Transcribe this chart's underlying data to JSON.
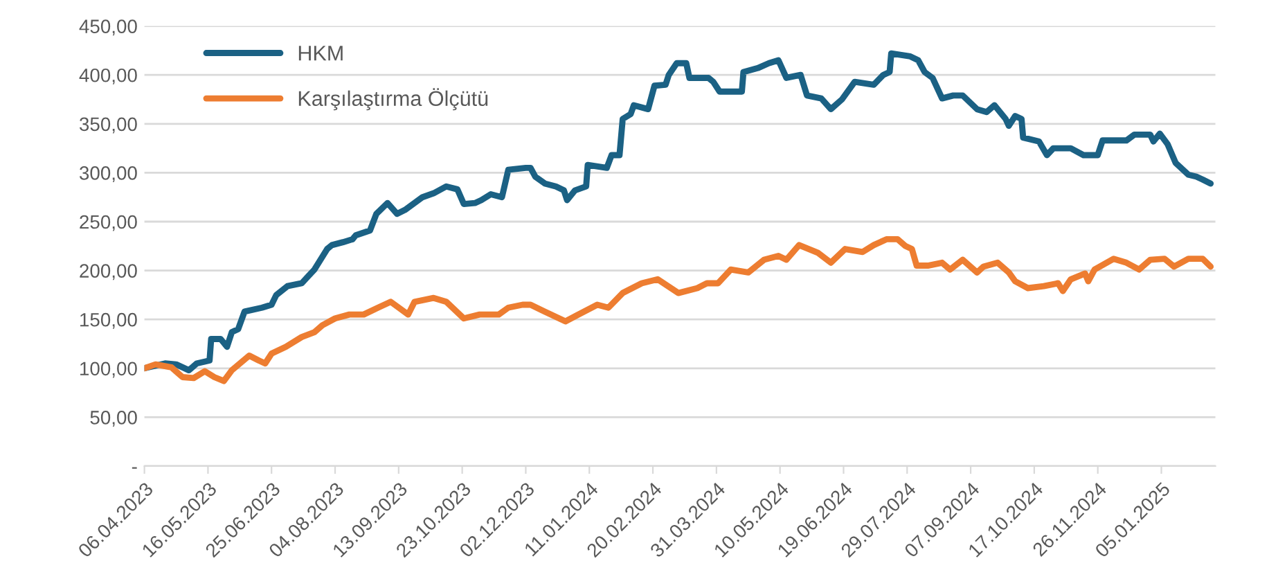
{
  "chart_data": {
    "type": "line",
    "xlim": [
      "2023-04-06",
      "2025-02-08"
    ],
    "xticks": [
      {
        "value": "2023-04-06",
        "label": "06.04.2023"
      },
      {
        "value": "2023-05-16",
        "label": "16.05.2023"
      },
      {
        "value": "2023-06-25",
        "label": "25.06.2023"
      },
      {
        "value": "2023-08-04",
        "label": "04.08.2023"
      },
      {
        "value": "2023-09-13",
        "label": "13.09.2023"
      },
      {
        "value": "2023-10-23",
        "label": "23.10.2023"
      },
      {
        "value": "2023-12-02",
        "label": "02.12.2023"
      },
      {
        "value": "2024-01-11",
        "label": "11.01.2024"
      },
      {
        "value": "2024-02-20",
        "label": "20.02.2024"
      },
      {
        "value": "2024-03-31",
        "label": "31.03.2024"
      },
      {
        "value": "2024-05-10",
        "label": "10.05.2024"
      },
      {
        "value": "2024-06-19",
        "label": "19.06.2024"
      },
      {
        "value": "2024-07-29",
        "label": "29.07.2024"
      },
      {
        "value": "2024-09-07",
        "label": "07.09.2024"
      },
      {
        "value": "2024-10-17",
        "label": "17.10.2024"
      },
      {
        "value": "2024-11-26",
        "label": "26.11.2024"
      },
      {
        "value": "2025-01-05",
        "label": "05.01.2025"
      }
    ],
    "ylim": [
      0,
      450
    ],
    "yticks": [
      {
        "value": 0,
        "label": "-"
      },
      {
        "value": 50,
        "label": "50,00"
      },
      {
        "value": 100,
        "label": "100,00"
      },
      {
        "value": 150,
        "label": "150,00"
      },
      {
        "value": 200,
        "label": "200,00"
      },
      {
        "value": 250,
        "label": "250,00"
      },
      {
        "value": 300,
        "label": "300,00"
      },
      {
        "value": 350,
        "label": "350,00"
      },
      {
        "value": 400,
        "label": "400,00"
      },
      {
        "value": 450,
        "label": "450,00"
      }
    ],
    "grid": "y",
    "legend": "top left",
    "marker": "none",
    "line_style": "solid",
    "series": [
      {
        "name": "HKM",
        "color": "#1b6184",
        "x": [
          "2023-04-06",
          "2023-04-19",
          "2023-04-26",
          "2023-05-04",
          "2023-05-09",
          "2023-05-17",
          "2023-05-18",
          "2023-05-24",
          "2023-05-28",
          "2023-05-31",
          "2023-06-04",
          "2023-06-08",
          "2023-06-19",
          "2023-06-25",
          "2023-06-28",
          "2023-07-05",
          "2023-07-14",
          "2023-07-18",
          "2023-07-22",
          "2023-07-30",
          "2023-08-02",
          "2023-08-09",
          "2023-08-15",
          "2023-08-17",
          "2023-08-26",
          "2023-08-30",
          "2023-09-06",
          "2023-09-12",
          "2023-09-17",
          "2023-09-28",
          "2023-10-05",
          "2023-10-13",
          "2023-10-20",
          "2023-10-24",
          "2023-10-31",
          "2023-11-04",
          "2023-11-10",
          "2023-11-17",
          "2023-11-21",
          "2023-12-02",
          "2023-12-05",
          "2023-12-08",
          "2023-12-14",
          "2023-12-21",
          "2023-12-26",
          "2023-12-28",
          "2024-01-02",
          "2024-01-09",
          "2024-01-10",
          "2024-01-22",
          "2024-01-25",
          "2024-01-30",
          "2024-02-01",
          "2024-02-06",
          "2024-02-08",
          "2024-02-17",
          "2024-02-21",
          "2024-02-28",
          "2024-03-01",
          "2024-03-06",
          "2024-03-12",
          "2024-03-14",
          "2024-03-26",
          "2024-03-29",
          "2024-04-02",
          "2024-04-16",
          "2024-04-17",
          "2024-04-26",
          "2024-05-03",
          "2024-05-09",
          "2024-05-14",
          "2024-05-23",
          "2024-05-27",
          "2024-06-05",
          "2024-06-11",
          "2024-06-18",
          "2024-06-26",
          "2024-07-08",
          "2024-07-14",
          "2024-07-18",
          "2024-07-19",
          "2024-07-31",
          "2024-08-05",
          "2024-08-09",
          "2024-08-14",
          "2024-08-20",
          "2024-08-27",
          "2024-09-02",
          "2024-09-11",
          "2024-09-17",
          "2024-09-22",
          "2024-09-29",
          "2024-10-01",
          "2024-10-05",
          "2024-10-09",
          "2024-10-10",
          "2024-10-20",
          "2024-10-25",
          "2024-10-29",
          "2024-11-09",
          "2024-11-17",
          "2024-11-26",
          "2024-11-29",
          "2024-12-14",
          "2024-12-19",
          "2024-12-29",
          "2024-12-31",
          "2025-01-04",
          "2025-01-09",
          "2025-01-14",
          "2025-01-22",
          "2025-01-27",
          "2025-01-31",
          "2025-02-05"
        ],
        "values": [
          100,
          105,
          104,
          98,
          105,
          108,
          130,
          130,
          122,
          137,
          140,
          158,
          162,
          165,
          175,
          184,
          187,
          194,
          201,
          222,
          226,
          229,
          232,
          236,
          241,
          258,
          269,
          258,
          262,
          275,
          279,
          286,
          283,
          268,
          269,
          272,
          278,
          275,
          303,
          305,
          305,
          296,
          289,
          286,
          282,
          272,
          282,
          286,
          308,
          305,
          318,
          318,
          355,
          360,
          369,
          365,
          389,
          390,
          400,
          412,
          412,
          397,
          397,
          393,
          383,
          383,
          403,
          407,
          412,
          415,
          397,
          400,
          379,
          376,
          365,
          375,
          393,
          390,
          400,
          403,
          422,
          419,
          415,
          403,
          397,
          376,
          379,
          379,
          365,
          362,
          369,
          355,
          348,
          358,
          355,
          336,
          332,
          318,
          325,
          325,
          318,
          318,
          333,
          333,
          339,
          339,
          332,
          340,
          329,
          310,
          298,
          296,
          293,
          289
        ]
      },
      {
        "name": "Karşılaştırma Ölçütü",
        "color": "#ed7d31",
        "x": [
          "2023-04-06",
          "2023-04-13",
          "2023-04-23",
          "2023-04-30",
          "2023-05-07",
          "2023-05-14",
          "2023-05-20",
          "2023-05-26",
          "2023-05-31",
          "2023-06-11",
          "2023-06-17",
          "2023-06-21",
          "2023-06-25",
          "2023-07-04",
          "2023-07-14",
          "2023-07-22",
          "2023-07-27",
          "2023-08-04",
          "2023-08-13",
          "2023-08-22",
          "2023-08-31",
          "2023-09-08",
          "2023-09-19",
          "2023-09-23",
          "2023-10-05",
          "2023-10-13",
          "2023-10-24",
          "2023-11-03",
          "2023-11-15",
          "2023-11-21",
          "2023-11-30",
          "2023-12-05",
          "2023-12-14",
          "2023-12-27",
          "2024-01-03",
          "2024-01-16",
          "2024-01-23",
          "2024-02-01",
          "2024-02-13",
          "2024-02-23",
          "2024-03-07",
          "2024-03-19",
          "2024-03-25",
          "2024-04-01",
          "2024-04-09",
          "2024-04-20",
          "2024-04-30",
          "2024-05-09",
          "2024-05-14",
          "2024-05-22",
          "2024-06-03",
          "2024-06-11",
          "2024-06-20",
          "2024-07-01",
          "2024-07-08",
          "2024-07-16",
          "2024-07-23",
          "2024-07-28",
          "2024-08-01",
          "2024-08-04",
          "2024-08-11",
          "2024-08-20",
          "2024-08-25",
          "2024-09-02",
          "2024-09-11",
          "2024-09-15",
          "2024-09-24",
          "2024-10-01",
          "2024-10-05",
          "2024-10-13",
          "2024-10-23",
          "2024-11-01",
          "2024-11-04",
          "2024-11-09",
          "2024-11-18",
          "2024-11-20",
          "2024-11-24",
          "2024-12-06",
          "2024-12-14",
          "2024-12-22",
          "2024-12-29",
          "2025-01-07",
          "2025-01-13",
          "2025-01-22",
          "2025-01-31",
          "2025-02-05"
        ],
        "values": [
          100,
          104,
          101,
          91,
          90,
          97,
          91,
          87,
          98,
          113,
          108,
          105,
          115,
          122,
          132,
          137,
          144,
          151,
          155,
          155,
          162,
          168,
          155,
          168,
          172,
          168,
          151,
          155,
          155,
          162,
          165,
          165,
          158,
          148,
          154,
          165,
          162,
          177,
          187,
          191,
          177,
          182,
          187,
          187,
          201,
          198,
          211,
          215,
          211,
          226,
          218,
          208,
          222,
          219,
          226,
          232,
          232,
          225,
          222,
          205,
          205,
          208,
          201,
          211,
          198,
          204,
          208,
          198,
          189,
          182,
          184,
          187,
          179,
          191,
          197,
          189,
          201,
          212,
          208,
          201,
          211,
          212,
          204,
          212,
          212,
          204
        ]
      }
    ]
  }
}
